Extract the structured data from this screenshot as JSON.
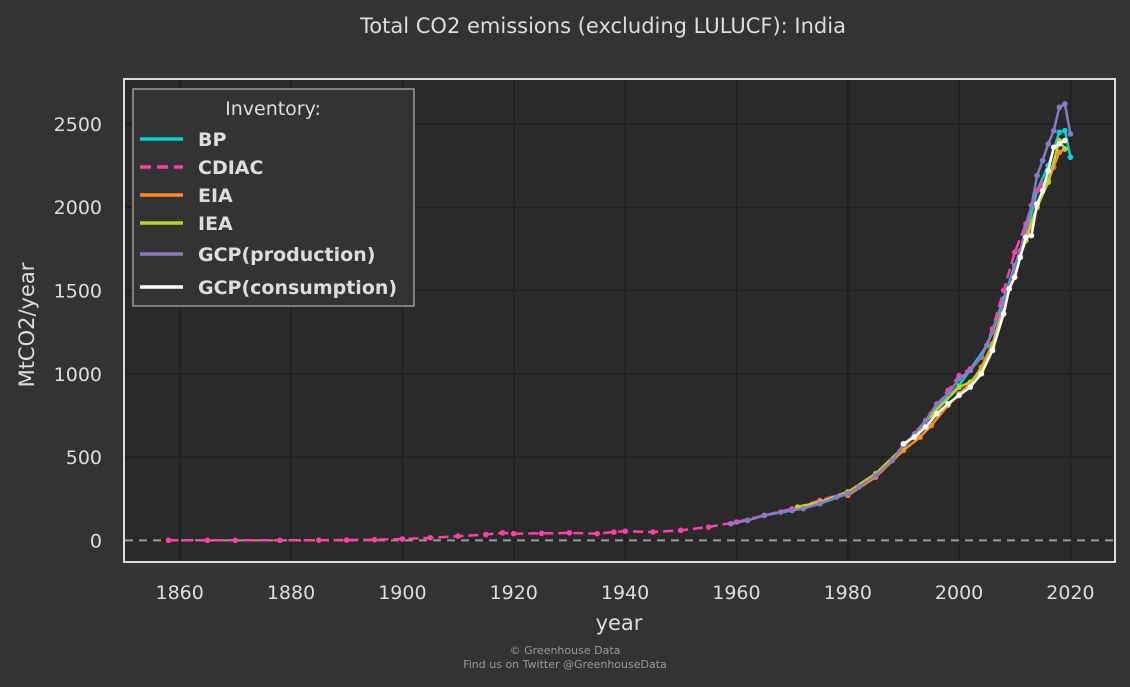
{
  "chart_data": {
    "type": "line",
    "title": "Total CO2 emissions (excluding LULUCF): India",
    "xlabel": "year",
    "ylabel": "MtCO2/year",
    "xlim": [
      1850,
      2028
    ],
    "ylim": [
      -130,
      2770
    ],
    "xticks": [
      1860,
      1880,
      1900,
      1920,
      1940,
      1960,
      1980,
      2000,
      2020
    ],
    "yticks": [
      0,
      500,
      1000,
      1500,
      2000,
      2500
    ],
    "legend_title": "Inventory:",
    "legend_position": "top-left",
    "grid": true,
    "zero_line": "dashed",
    "series": [
      {
        "name": "BP",
        "color": "#00d4d4",
        "style": "solid",
        "x": [
          1965,
          1970,
          1975,
          1980,
          1985,
          1990,
          1995,
          2000,
          2005,
          2008,
          2010,
          2012,
          2014,
          2016,
          2018,
          2019,
          2020
        ],
        "y": [
          150,
          180,
          220,
          280,
          390,
          560,
          760,
          930,
          1170,
          1450,
          1650,
          1830,
          2100,
          2250,
          2450,
          2460,
          2300
        ]
      },
      {
        "name": "CDIAC",
        "color": "#ff3fa4",
        "style": "dashed",
        "x": [
          1858,
          1865,
          1870,
          1878,
          1885,
          1890,
          1895,
          1900,
          1905,
          1910,
          1915,
          1918,
          1920,
          1925,
          1930,
          1935,
          1938,
          1940,
          1945,
          1950,
          1955,
          1960,
          1965,
          1970,
          1975,
          1980,
          1985,
          1990,
          1993,
          1995,
          1998,
          2000,
          2002,
          2004,
          2006,
          2008,
          2010,
          2012,
          2013,
          2014,
          2015,
          2016,
          2017
        ],
        "y": [
          0,
          0,
          0,
          0,
          1,
          2,
          4,
          8,
          15,
          25,
          35,
          45,
          40,
          42,
          45,
          40,
          50,
          55,
          50,
          60,
          80,
          110,
          150,
          190,
          240,
          290,
          380,
          570,
          660,
          760,
          900,
          990,
          1030,
          1100,
          1270,
          1500,
          1730,
          1900,
          2010,
          2100,
          2140,
          2180,
          2240
        ]
      },
      {
        "name": "EIA",
        "color": "#ff8a1f",
        "style": "solid",
        "x": [
          1980,
          1985,
          1990,
          1993,
          1995,
          1998,
          2000,
          2002,
          2004,
          2006,
          2008,
          2010,
          2012,
          2014,
          2016,
          2018,
          2019
        ],
        "y": [
          270,
          380,
          540,
          620,
          690,
          810,
          880,
          940,
          1040,
          1180,
          1400,
          1610,
          1830,
          2000,
          2160,
          2330,
          2350
        ]
      },
      {
        "name": "IEA",
        "color": "#b5d91a",
        "style": "solid",
        "x": [
          1971,
          1975,
          1980,
          1985,
          1990,
          1995,
          2000,
          2002,
          2004,
          2006,
          2008,
          2010,
          2012,
          2014,
          2016,
          2018,
          2019
        ],
        "y": [
          200,
          230,
          290,
          400,
          560,
          750,
          920,
          950,
          1020,
          1160,
          1420,
          1620,
          1800,
          2000,
          2150,
          2400,
          2350
        ]
      },
      {
        "name": "GCP(production)",
        "color": "#8a79c7",
        "style": "solid",
        "x": [
          1959,
          1962,
          1965,
          1968,
          1970,
          1972,
          1975,
          1978,
          1980,
          1982,
          1985,
          1988,
          1990,
          1992,
          1994,
          1996,
          1998,
          2000,
          2002,
          2004,
          2006,
          2008,
          2010,
          2011,
          2012,
          2013,
          2014,
          2015,
          2016,
          2017,
          2018,
          2019,
          2020
        ],
        "y": [
          100,
          120,
          150,
          170,
          180,
          190,
          220,
          260,
          280,
          320,
          390,
          480,
          570,
          640,
          720,
          820,
          880,
          970,
          1020,
          1100,
          1250,
          1420,
          1640,
          1740,
          1880,
          2010,
          2190,
          2280,
          2380,
          2460,
          2600,
          2620,
          2440
        ]
      },
      {
        "name": "GCP(consumption)",
        "color": "#ffffff",
        "style": "solid",
        "x": [
          1990,
          1992,
          1994,
          1996,
          1998,
          2000,
          2002,
          2004,
          2006,
          2008,
          2009,
          2010,
          2011,
          2012,
          2013,
          2014,
          2015,
          2016,
          2017,
          2018,
          2019
        ],
        "y": [
          580,
          620,
          680,
          760,
          820,
          870,
          920,
          1000,
          1140,
          1360,
          1510,
          1580,
          1700,
          1820,
          1830,
          2020,
          2100,
          2220,
          2360,
          2380,
          2400
        ]
      }
    ]
  },
  "footer": {
    "credit": "© Greenhouse Data",
    "twitter": "Find us on Twitter @GreenhouseData"
  }
}
